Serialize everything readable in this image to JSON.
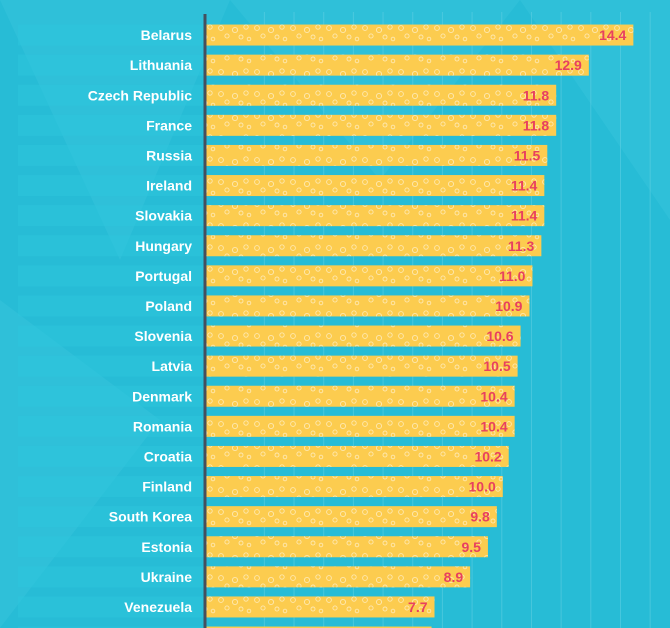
{
  "chart_data": {
    "type": "bar",
    "orientation": "horizontal",
    "title": "",
    "xlabel": "",
    "ylabel": "",
    "xlim": [
      0,
      15.5
    ],
    "grid": true,
    "categories": [
      "Belarus",
      "Lithuania",
      "Czech Republic",
      "France",
      "Russia",
      "Ireland",
      "Slovakia",
      "Hungary",
      "Portugal",
      "Poland",
      "Slovenia",
      "Latvia",
      "Denmark",
      "Romania",
      "Croatia",
      "Finland",
      "South Korea",
      "Estonia",
      "Ukraine",
      "Venezuela"
    ],
    "values": [
      14.4,
      12.9,
      11.8,
      11.8,
      11.5,
      11.4,
      11.4,
      11.3,
      11.0,
      10.9,
      10.6,
      10.5,
      10.4,
      10.4,
      10.2,
      10.0,
      9.8,
      9.5,
      8.9,
      7.7
    ],
    "value_labels": [
      "14.4",
      "12.9",
      "11.8",
      "11.8",
      "11.5",
      "11.4",
      "11.4",
      "11.3",
      "11.0",
      "10.9",
      "10.6",
      "10.5",
      "10.4",
      "10.4",
      "10.2",
      "10.0",
      "9.8",
      "9.5",
      "8.9",
      "7.7"
    ],
    "partial_next_value": 7.6
  },
  "colors": {
    "background": "#27bcd6",
    "background_light": "#3ec8e0",
    "label_band": "#2ec4dc",
    "bar": "#fccc4f",
    "bar_pattern": "#ffffff",
    "value_text": "#e8405f",
    "category_text": "#ffffff",
    "axis": "#44505e",
    "grid": "#6fd5e6"
  }
}
